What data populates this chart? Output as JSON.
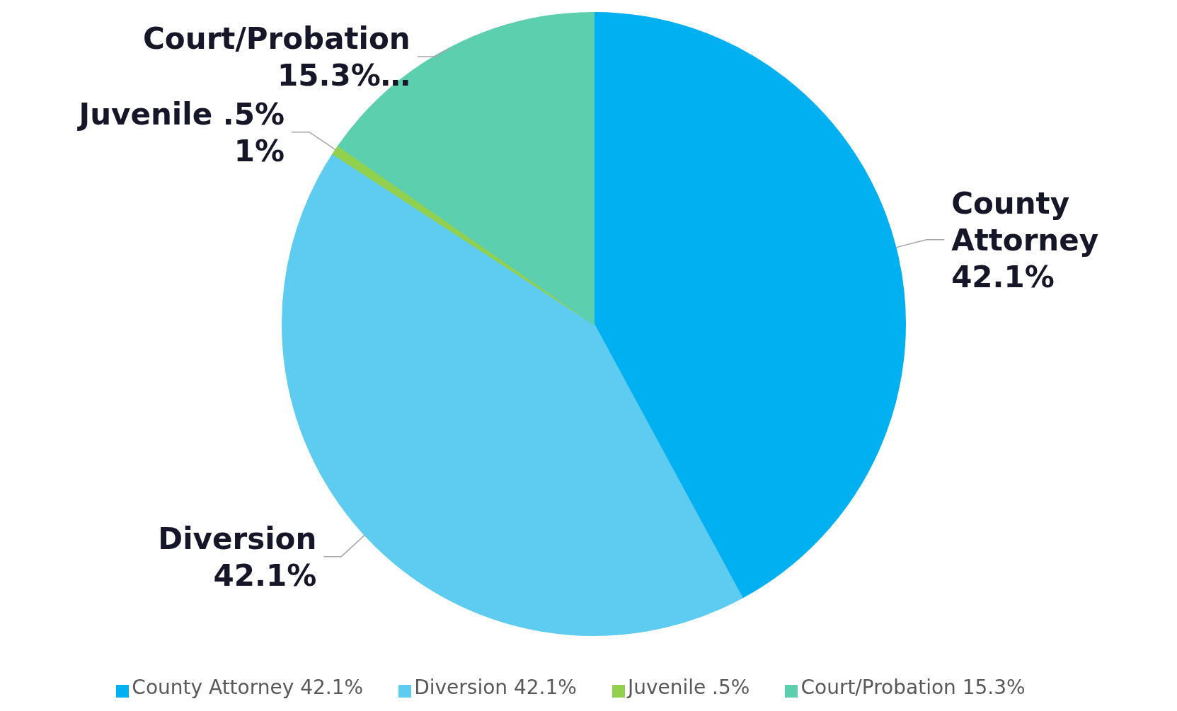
{
  "chart_data": {
    "type": "pie",
    "categories": [
      "County Attorney 42.1%",
      "Diversion 42.1%",
      "Juvenile .5%",
      "Court/Probation 15.3%"
    ],
    "values": [
      42.1,
      42.1,
      0.5,
      15.3
    ],
    "colors": [
      "#00b0f0",
      "#5ecbf0",
      "#92d050",
      "#5ccfae"
    ],
    "value_labels": [
      "County Attorney 42.1%",
      "Diversion 42.1%",
      "Juvenile .5% 1%",
      "Court/Probation 15.3%…"
    ],
    "legend": "bottom"
  }
}
